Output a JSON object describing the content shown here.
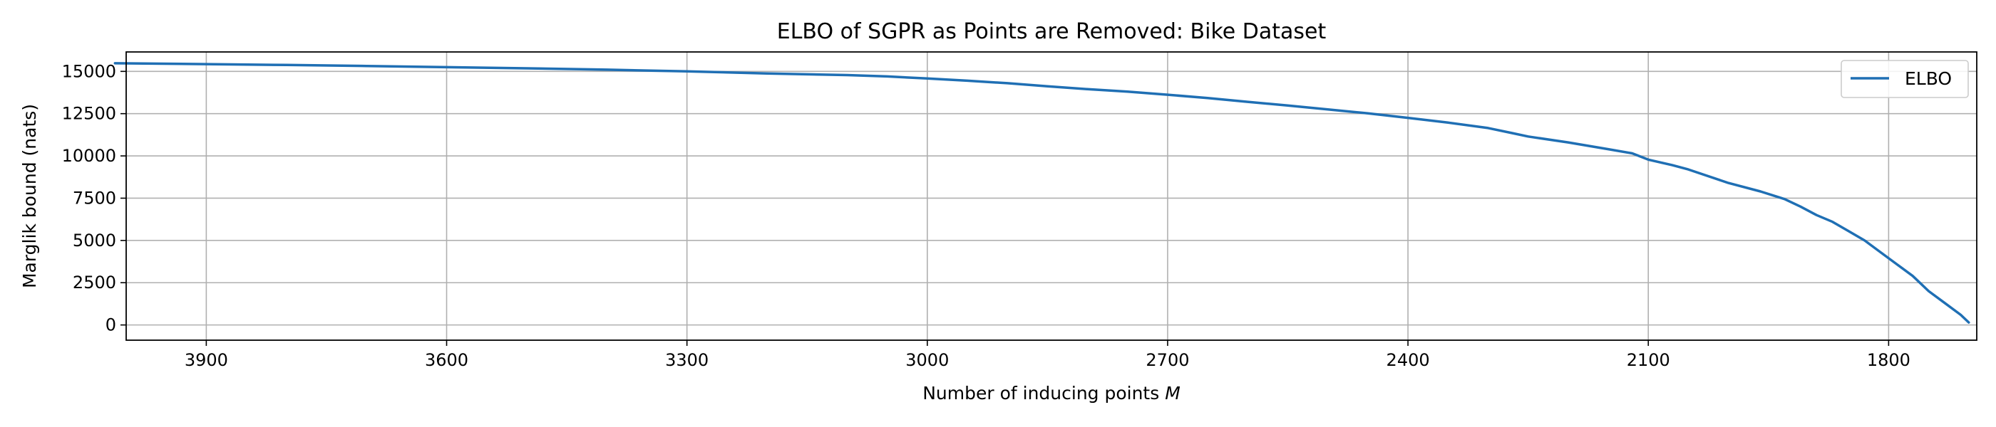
{
  "chart_data": {
    "type": "line",
    "title": "ELBO of SGPR as Points are Removed: Bike Dataset",
    "xlabel": "Number of inducing points",
    "xlabel_var": "M",
    "ylabel": "Marglik bound (nats)",
    "x_reversed": true,
    "xlim": [
      4000,
      1690
    ],
    "ylim": [
      -900,
      16150
    ],
    "xticks": [
      3900,
      3600,
      3300,
      3000,
      2700,
      2400,
      2100,
      1800
    ],
    "yticks": [
      0,
      2500,
      5000,
      7500,
      10000,
      12500,
      15000
    ],
    "grid": true,
    "legend_position": "upper right",
    "series": [
      {
        "name": "ELBO",
        "color": "#1f6fb4",
        "x": [
          4014,
          3900,
          3800,
          3700,
          3600,
          3500,
          3400,
          3300,
          3200,
          3100,
          3050,
          3000,
          2950,
          2900,
          2850,
          2800,
          2750,
          2700,
          2650,
          2600,
          2550,
          2500,
          2450,
          2400,
          2350,
          2300,
          2270,
          2250,
          2200,
          2150,
          2120,
          2100,
          2070,
          2050,
          2000,
          1960,
          1930,
          1910,
          1890,
          1870,
          1850,
          1830,
          1810,
          1790,
          1770,
          1750,
          1730,
          1710,
          1700
        ],
        "y": [
          15480,
          15430,
          15380,
          15320,
          15250,
          15180,
          15100,
          15000,
          14880,
          14780,
          14700,
          14580,
          14450,
          14300,
          14120,
          13950,
          13800,
          13620,
          13420,
          13200,
          12980,
          12750,
          12520,
          12250,
          11970,
          11650,
          11350,
          11150,
          10800,
          10400,
          10150,
          9780,
          9450,
          9200,
          8400,
          7900,
          7450,
          7000,
          6500,
          6100,
          5550,
          5000,
          4300,
          3600,
          2900,
          2000,
          1300,
          600,
          150
        ]
      }
    ]
  }
}
